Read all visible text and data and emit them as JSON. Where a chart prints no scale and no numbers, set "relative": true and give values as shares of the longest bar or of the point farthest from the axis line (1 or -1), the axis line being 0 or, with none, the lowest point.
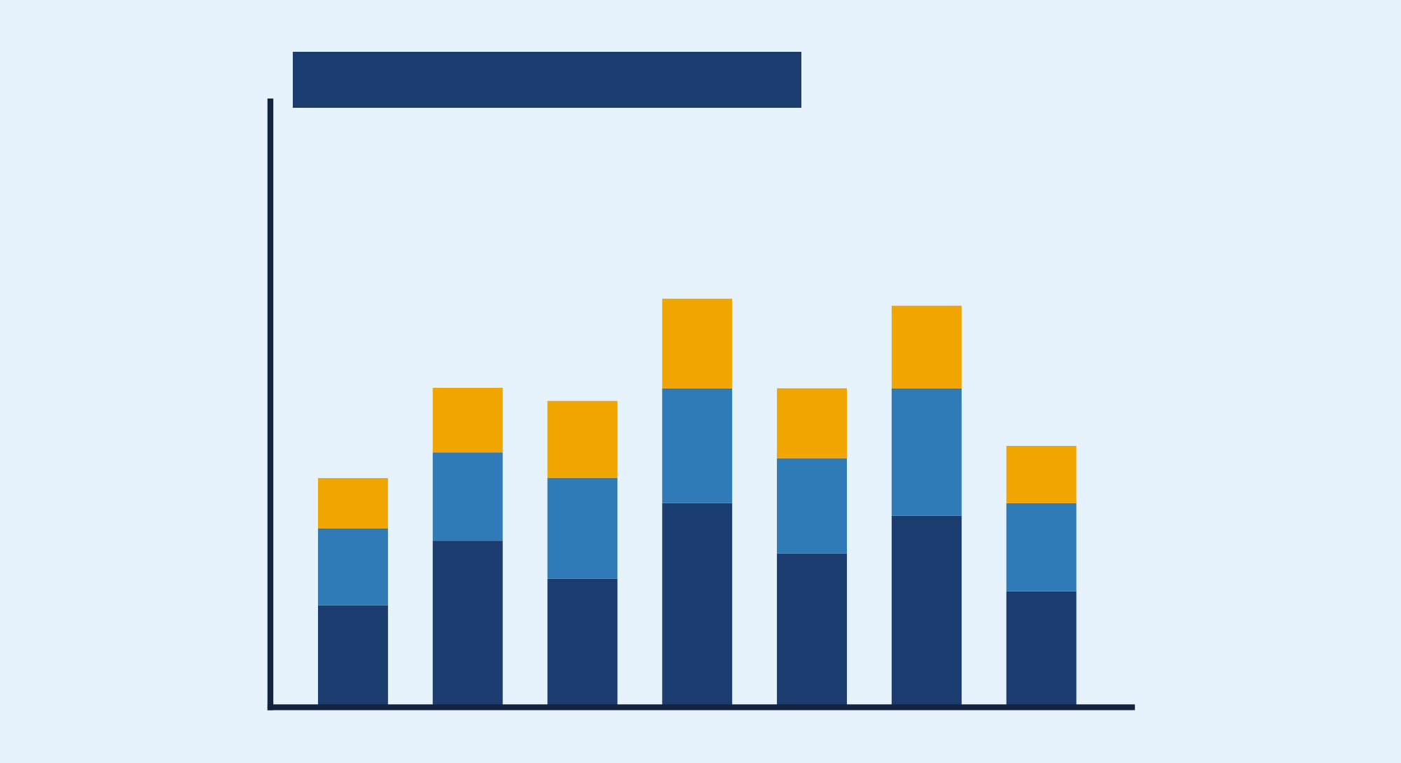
{
  "chart_data": {
    "type": "bar",
    "stacked": true,
    "relative": true,
    "categories": [
      null,
      null,
      null,
      null,
      null,
      null,
      null
    ],
    "series": [
      {
        "color": "#1b3c6e",
        "values": [
          0.25,
          0.408,
          0.315,
          0.5,
          0.377,
          0.469,
          0.284
        ]
      },
      {
        "color": "#2e7bb8",
        "values": [
          0.188,
          0.216,
          0.247,
          0.281,
          0.233,
          0.312,
          0.216
        ]
      },
      {
        "color": "#f0a500",
        "values": [
          0.123,
          0.158,
          0.188,
          0.219,
          0.171,
          0.202,
          0.14
        ]
      }
    ]
  }
}
